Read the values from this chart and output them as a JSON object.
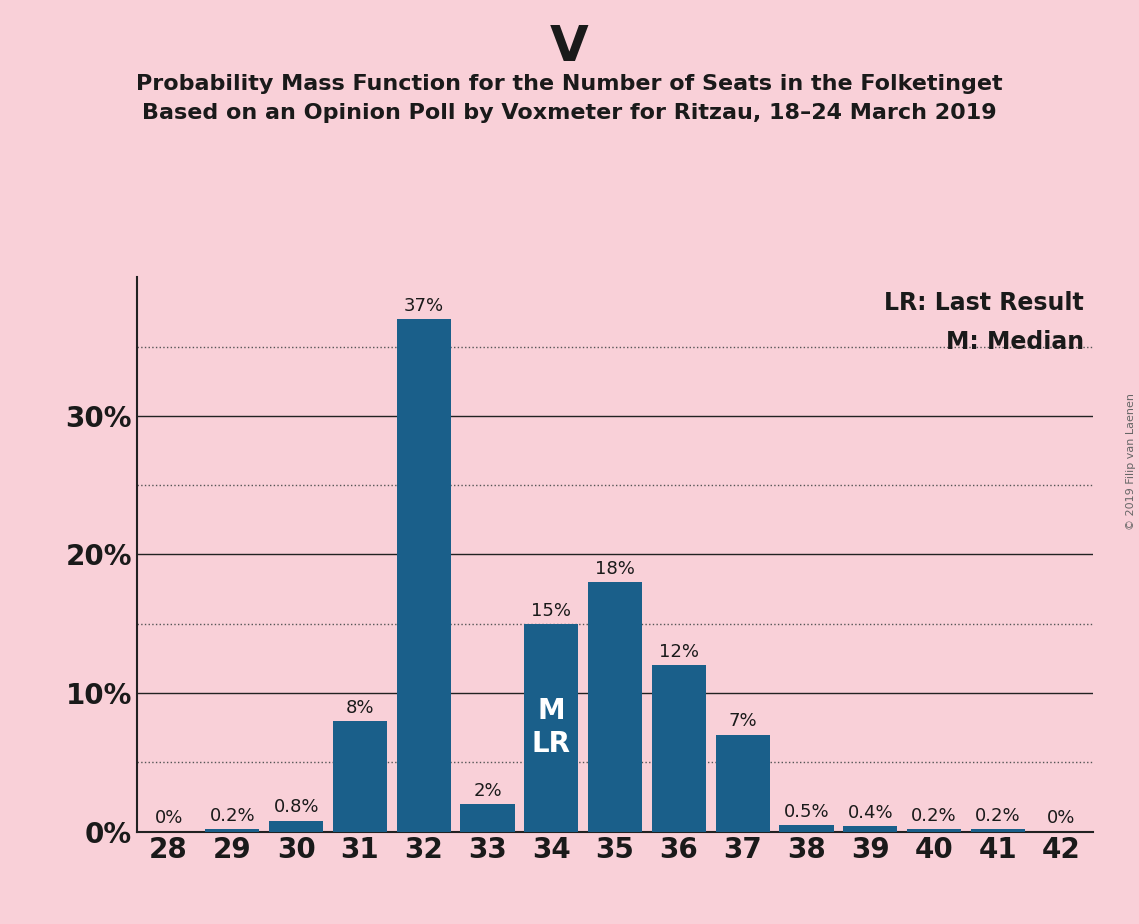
{
  "title": "V",
  "subtitle_line1": "Probability Mass Function for the Number of Seats in the Folketinget",
  "subtitle_line2": "Based on an Opinion Poll by Voxmeter for Ritzau, 18–24 March 2019",
  "copyright_text": "© 2019 Filip van Laenen",
  "categories": [
    28,
    29,
    30,
    31,
    32,
    33,
    34,
    35,
    36,
    37,
    38,
    39,
    40,
    41,
    42
  ],
  "values": [
    0.0,
    0.2,
    0.8,
    8.0,
    37.0,
    2.0,
    15.0,
    18.0,
    12.0,
    7.0,
    0.5,
    0.4,
    0.2,
    0.2,
    0.0
  ],
  "bar_labels": [
    "0%",
    "0.2%",
    "0.8%",
    "8%",
    "37%",
    "2%",
    "15%",
    "18%",
    "12%",
    "7%",
    "0.5%",
    "0.4%",
    "0.2%",
    "0.2%",
    "0%"
  ],
  "bar_color": "#1a5f8a",
  "background_color": "#f9d0d8",
  "text_color": "#1a1a1a",
  "median_seat": 34,
  "last_result_seat": 34,
  "ylim": [
    0,
    40
  ],
  "solid_grid": [
    10,
    20,
    30
  ],
  "dotted_grid": [
    5,
    15,
    25,
    35
  ],
  "ytick_positions": [
    0,
    10,
    20,
    30
  ],
  "ytick_labels": [
    "0%",
    "10%",
    "20%",
    "30%"
  ],
  "title_fontsize": 36,
  "subtitle_fontsize": 16,
  "axis_tick_fontsize": 20,
  "bar_label_fontsize": 13,
  "legend_fontsize": 17,
  "annotation_fontsize": 20
}
